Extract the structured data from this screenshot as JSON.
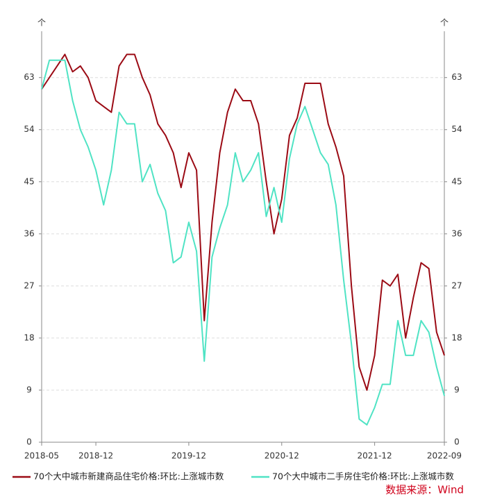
{
  "chart_data": {
    "type": "line",
    "y_unit": "个",
    "y2_unit": "个",
    "categories": [
      "2018-05",
      null,
      null,
      null,
      null,
      null,
      null,
      "2018-12",
      null,
      null,
      null,
      null,
      null,
      null,
      null,
      null,
      null,
      null,
      null,
      "2019-12",
      null,
      null,
      null,
      null,
      null,
      null,
      null,
      null,
      null,
      null,
      null,
      "2020-12",
      null,
      null,
      null,
      null,
      null,
      null,
      null,
      null,
      null,
      null,
      null,
      "2021-12",
      null,
      null,
      null,
      null,
      null,
      null,
      null,
      null,
      "2022-09"
    ],
    "series": [
      {
        "name": "70个大中城市新建商品住宅价格:环比:上涨城市数",
        "color": "#9b0a14",
        "values": [
          61,
          63,
          65,
          67,
          64,
          65,
          63,
          59,
          58,
          57,
          65,
          67,
          67,
          63,
          60,
          55,
          53,
          50,
          44,
          50,
          47,
          21,
          38,
          50,
          57,
          61,
          59,
          59,
          55,
          45,
          36,
          42,
          53,
          56,
          62,
          62,
          62,
          55,
          51,
          46,
          27,
          13,
          9,
          15,
          28,
          27,
          29,
          18,
          25,
          31,
          30,
          19,
          15
        ]
      },
      {
        "name": "70个大中城市二手房住宅价格:环比:上涨城市数",
        "color": "#4fe3c4",
        "values": [
          61,
          66,
          66,
          66,
          59,
          54,
          51,
          47,
          41,
          47,
          57,
          55,
          55,
          45,
          48,
          43,
          40,
          31,
          32,
          38,
          33,
          14,
          32,
          37,
          41,
          50,
          45,
          47,
          50,
          39,
          44,
          38,
          49,
          55,
          58,
          54,
          50,
          48,
          41,
          28,
          17,
          4,
          3,
          6,
          10,
          10,
          21,
          15,
          15,
          21,
          19,
          13,
          8
        ]
      }
    ],
    "ylim": [
      0,
      71
    ],
    "yticks": [
      0,
      9,
      18,
      27,
      36,
      45,
      54,
      63
    ],
    "y2lim": [
      0,
      71
    ],
    "y2ticks": [
      0,
      9,
      18,
      27,
      36,
      45,
      54,
      63
    ],
    "grid": true,
    "source": "数据来源：Wind"
  }
}
